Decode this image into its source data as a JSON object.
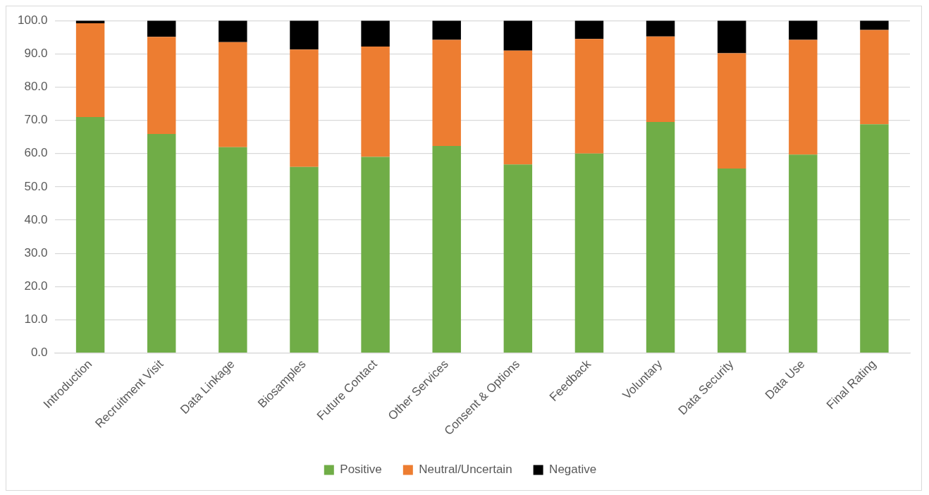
{
  "chart_data": {
    "type": "bar",
    "stacked": true,
    "categories": [
      "Introduction",
      "Recruitment Visit",
      "Data Linkage",
      "Biosamples",
      "Future Contact",
      "Other Services",
      "Consent & Options",
      "Feedback",
      "Voluntary",
      "Data Security",
      "Data Use",
      "Final Rating"
    ],
    "series": [
      {
        "name": "Positive",
        "color": "#70ad47",
        "values": [
          71.0,
          65.9,
          61.9,
          56.0,
          59.0,
          62.3,
          56.7,
          60.0,
          69.5,
          55.5,
          59.7,
          68.8
        ]
      },
      {
        "name": "Neutral/Uncertain",
        "color": "#ed7d31",
        "values": [
          28.2,
          29.2,
          31.6,
          35.3,
          33.2,
          31.9,
          34.3,
          34.5,
          25.7,
          34.7,
          34.5,
          28.4
        ]
      },
      {
        "name": "Negative",
        "color": "#000000",
        "values": [
          0.8,
          4.9,
          6.5,
          8.7,
          7.8,
          5.8,
          9.0,
          5.5,
          4.8,
          9.8,
          5.8,
          2.8
        ]
      }
    ],
    "ylim": [
      0,
      100
    ],
    "yticks": [
      {
        "value": 0,
        "label": "0.0"
      },
      {
        "value": 10,
        "label": "10.0"
      },
      {
        "value": 20,
        "label": "20.0"
      },
      {
        "value": 30,
        "label": "30.0"
      },
      {
        "value": 40,
        "label": "40.0"
      },
      {
        "value": 50,
        "label": "50.0"
      },
      {
        "value": 60,
        "label": "60.0"
      },
      {
        "value": 70,
        "label": "70.0"
      },
      {
        "value": 80,
        "label": "80.0"
      },
      {
        "value": 90,
        "label": "90.0"
      },
      {
        "value": 100,
        "label": "100.0"
      }
    ],
    "grid": "y",
    "legend": "bottom"
  }
}
